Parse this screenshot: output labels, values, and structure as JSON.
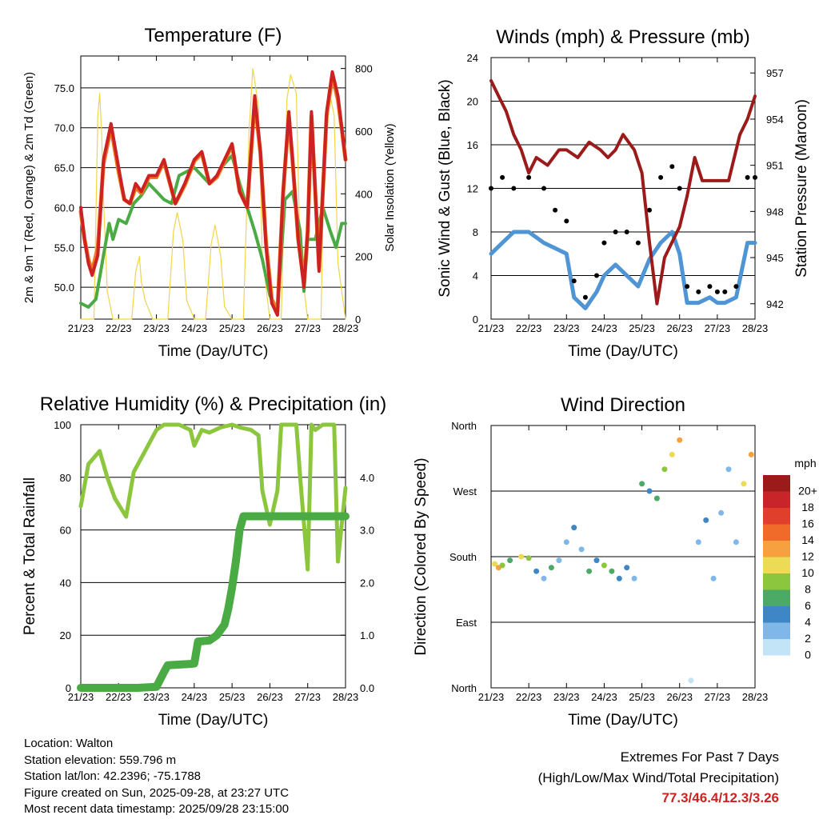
{
  "chart_data": [
    {
      "type": "line",
      "title": "Temperature (F)",
      "xlabel": "Time (Day/UTC)",
      "ylabel": "2m & 9m T (Red, Orange) & 2m Td (Green)",
      "y2label": "Solar Insolation (Yellow)",
      "x_ticks": [
        "21/23",
        "22/23",
        "23/23",
        "24/23",
        "25/23",
        "26/23",
        "27/23",
        "28/23"
      ],
      "y_ticks": [
        "50.0",
        "55.0",
        "60.0",
        "65.0",
        "70.0",
        "75.0"
      ],
      "y2_ticks": [
        "0",
        "200",
        "400",
        "600",
        "800"
      ],
      "ylim": [
        46,
        79
      ],
      "y2lim": [
        0,
        840
      ],
      "xlim": [
        0,
        7
      ],
      "series": [
        {
          "name": "2m Temperature",
          "color": "#cc2222",
          "x": [
            0,
            0.1,
            0.2,
            0.3,
            0.45,
            0.6,
            0.8,
            1.0,
            1.15,
            1.3,
            1.45,
            1.6,
            1.8,
            2.0,
            2.2,
            2.5,
            2.75,
            3.0,
            3.2,
            3.4,
            3.6,
            3.8,
            4.0,
            4.2,
            4.4,
            4.6,
            4.75,
            4.9,
            5.05,
            5.2,
            5.35,
            5.5,
            5.6,
            5.75,
            5.9,
            6.0,
            6.1,
            6.3,
            6.5,
            6.65,
            6.8,
            6.9,
            7.0
          ],
          "values": [
            60,
            56,
            53,
            51.5,
            54,
            66,
            70.5,
            65,
            61,
            60.5,
            63,
            62,
            64,
            64,
            66,
            60.5,
            63,
            66,
            67,
            63,
            64,
            66,
            68,
            62,
            60,
            74,
            67,
            55,
            48,
            46.5,
            62,
            72,
            66,
            56,
            50,
            57,
            72,
            52,
            72,
            77,
            74,
            70,
            66
          ]
        },
        {
          "name": "9m Temperature",
          "color": "#f07a20",
          "x": [
            0,
            0.1,
            0.2,
            0.3,
            0.45,
            0.6,
            0.8,
            1.0,
            1.15,
            1.3,
            1.45,
            1.6,
            1.8,
            2.0,
            2.2,
            2.5,
            2.75,
            3.0,
            3.2,
            3.4,
            3.6,
            3.8,
            4.0,
            4.2,
            4.4,
            4.6,
            4.75,
            4.9,
            5.05,
            5.2,
            5.35,
            5.5,
            5.6,
            5.75,
            5.9,
            6.0,
            6.1,
            6.3,
            6.5,
            6.65,
            6.8,
            6.9,
            7.0
          ],
          "values": [
            59.5,
            56,
            53.5,
            52,
            55,
            65.5,
            70,
            64.5,
            61,
            60.5,
            62.5,
            61.8,
            63.8,
            63.8,
            65.8,
            60.5,
            62.8,
            65.8,
            66.8,
            63,
            63.8,
            65.8,
            67.8,
            62,
            60,
            73.5,
            66.8,
            55.5,
            48.5,
            47,
            61.8,
            71.5,
            65.8,
            56,
            50.5,
            57,
            71.5,
            52.5,
            71.5,
            76.5,
            73.5,
            69.8,
            66
          ]
        },
        {
          "name": "2m Dewpoint",
          "color": "#4aaa44",
          "x": [
            0,
            0.2,
            0.4,
            0.6,
            0.75,
            0.85,
            1.0,
            1.2,
            1.4,
            1.6,
            1.8,
            2.0,
            2.2,
            2.4,
            2.6,
            2.8,
            3.0,
            3.2,
            3.4,
            3.6,
            3.8,
            4.0,
            4.2,
            4.4,
            4.6,
            4.8,
            5.0,
            5.2,
            5.4,
            5.6,
            5.8,
            5.9,
            6.0,
            6.2,
            6.4,
            6.6,
            6.75,
            6.9,
            7.0
          ],
          "values": [
            48,
            47.5,
            48.5,
            54,
            58,
            56,
            58.5,
            58,
            60.5,
            61.5,
            63,
            62,
            61,
            60.5,
            64,
            64.5,
            65,
            64,
            63,
            64,
            65.5,
            66.5,
            63,
            60,
            57,
            53.5,
            49,
            47,
            61,
            62,
            57,
            49.5,
            56,
            56,
            60,
            57,
            55,
            58,
            58
          ]
        },
        {
          "name": "Solar Insolation",
          "color": "#f2d44a",
          "axis": "y2",
          "x": [
            0,
            0.35,
            0.45,
            0.5,
            0.55,
            0.6,
            0.7,
            0.85,
            1,
            1.35,
            1.45,
            1.55,
            1.6,
            1.7,
            1.9,
            2,
            2.3,
            2.45,
            2.55,
            2.7,
            2.8,
            3,
            3.3,
            3.45,
            3.55,
            3.7,
            3.8,
            4,
            4.3,
            4.45,
            4.55,
            4.7,
            4.8,
            5,
            5.3,
            5.45,
            5.55,
            5.7,
            5.8,
            6,
            6.35,
            6.45,
            6.55,
            6.7,
            6.8,
            7
          ],
          "values": [
            0,
            0,
            650,
            720,
            600,
            380,
            90,
            0,
            0,
            0,
            150,
            200,
            120,
            60,
            0,
            0,
            0,
            280,
            340,
            250,
            60,
            0,
            0,
            240,
            300,
            200,
            40,
            0,
            0,
            600,
            800,
            680,
            200,
            0,
            0,
            700,
            780,
            720,
            200,
            0,
            0,
            600,
            740,
            650,
            180,
            0
          ]
        }
      ]
    },
    {
      "type": "line",
      "title": "Winds (mph) & Pressure (mb)",
      "xlabel": "Time (Day/UTC)",
      "ylabel": "Sonic Wind & Gust (Blue, Black)",
      "y2label": "Station Pressure (Maroon)",
      "x_ticks": [
        "21/23",
        "22/23",
        "23/23",
        "24/23",
        "25/23",
        "26/23",
        "27/23",
        "28/23"
      ],
      "y_ticks": [
        "0",
        "4",
        "8",
        "12",
        "16",
        "20",
        "24"
      ],
      "y2_ticks": [
        "942",
        "945",
        "948",
        "951",
        "954",
        "957"
      ],
      "ylim": [
        0,
        24
      ],
      "y2lim": [
        941,
        958
      ],
      "xlim": [
        0,
        7
      ],
      "series": [
        {
          "name": "Sonic Wind",
          "color": "#4f94d4",
          "x": [
            0,
            0.3,
            0.6,
            1.0,
            1.4,
            1.7,
            2.0,
            2.2,
            2.5,
            2.8,
            3.0,
            3.3,
            3.6,
            3.9,
            4.2,
            4.5,
            4.8,
            5.0,
            5.2,
            5.5,
            5.8,
            6.0,
            6.2,
            6.5,
            6.8,
            7.0
          ],
          "values": [
            6,
            7,
            8,
            8,
            7,
            6.5,
            6,
            2,
            1,
            2.5,
            4,
            5,
            4,
            3,
            5.5,
            7,
            8,
            6,
            1.5,
            1.5,
            2,
            1.5,
            1.5,
            2,
            7,
            7
          ]
        },
        {
          "name": "Gust",
          "color": "#000000",
          "x": [
            0,
            0.3,
            0.6,
            1.0,
            1.4,
            1.7,
            2.0,
            2.2,
            2.5,
            2.8,
            3.0,
            3.3,
            3.6,
            3.9,
            4.2,
            4.5,
            4.8,
            5.0,
            5.2,
            5.5,
            5.8,
            6.0,
            6.2,
            6.5,
            6.8,
            7.0
          ],
          "values": [
            12,
            13,
            12,
            13,
            12,
            10,
            9,
            3.5,
            2,
            4,
            7,
            8,
            8,
            7,
            10,
            13,
            14,
            12,
            3,
            2.5,
            3,
            2.5,
            2.5,
            3,
            13,
            13
          ]
        },
        {
          "name": "Station Pressure",
          "color": "#9b1b1b",
          "axis": "y2",
          "x": [
            0,
            0.2,
            0.4,
            0.6,
            0.8,
            1.0,
            1.2,
            1.5,
            1.8,
            2.0,
            2.3,
            2.6,
            2.9,
            3.1,
            3.3,
            3.5,
            3.8,
            4.0,
            4.2,
            4.4,
            4.6,
            4.8,
            5.0,
            5.2,
            5.4,
            5.6,
            5.8,
            6.0,
            6.3,
            6.6,
            6.8,
            7.0
          ],
          "values": [
            956.5,
            955.5,
            954.5,
            953,
            952,
            950.5,
            951.5,
            951,
            952,
            952,
            951.5,
            952.5,
            952,
            951.5,
            952,
            953,
            952,
            950.5,
            946,
            942,
            945,
            946,
            947,
            949,
            951.5,
            950,
            950,
            950,
            950,
            953,
            954,
            955.5
          ]
        }
      ]
    },
    {
      "type": "line",
      "title": "Relative Humidity (%) & Precipitation (in)",
      "xlabel": "Time (Day/UTC)",
      "ylabel": "Percent & Total Rainfall",
      "x_ticks": [
        "21/23",
        "22/23",
        "23/23",
        "24/23",
        "25/23",
        "26/23",
        "27/23",
        "28/23"
      ],
      "y_ticks": [
        "0",
        "20",
        "40",
        "60",
        "80",
        "100"
      ],
      "y2_ticks": [
        "0.0",
        "1.0",
        "2.0",
        "3.0",
        "4.0"
      ],
      "ylim": [
        0,
        100
      ],
      "y2lim": [
        0,
        5
      ],
      "xlim": [
        0,
        7
      ],
      "series": [
        {
          "name": "Relative Humidity",
          "color": "#8cc63f",
          "x": [
            0,
            0.2,
            0.5,
            0.7,
            0.9,
            1.2,
            1.4,
            1.7,
            2.0,
            2.2,
            2.6,
            2.9,
            3.0,
            3.2,
            3.4,
            3.7,
            4.0,
            4.2,
            4.5,
            4.7,
            4.8,
            5.0,
            5.2,
            5.3,
            5.5,
            5.7,
            5.8,
            6.0,
            6.1,
            6.2,
            6.4,
            6.7,
            6.8,
            7.0
          ],
          "values": [
            69,
            85,
            90,
            80,
            72,
            65,
            82,
            90,
            98,
            100,
            100,
            98,
            92,
            98,
            97,
            99,
            100,
            99,
            98,
            96,
            75,
            62,
            75,
            100,
            100,
            100,
            80,
            45,
            100,
            98,
            100,
            100,
            48,
            76
          ]
        },
        {
          "name": "Total Rainfall",
          "color": "#4aaa44",
          "axis": "y2",
          "x": [
            0,
            1.5,
            2.0,
            2.2,
            2.3,
            2.8,
            3.0,
            3.1,
            3.4,
            3.6,
            3.8,
            3.9,
            4.0,
            4.1,
            4.2,
            4.3,
            7.0
          ],
          "values": [
            0,
            0,
            0.02,
            0.3,
            0.43,
            0.45,
            0.46,
            0.88,
            0.9,
            1.0,
            1.2,
            1.5,
            1.9,
            2.4,
            3.0,
            3.26,
            3.26
          ]
        }
      ]
    },
    {
      "type": "scatter",
      "title": "Wind Direction",
      "xlabel": "Time (Day/UTC)",
      "ylabel": "Direction (Colored By Speed)",
      "x_ticks": [
        "21/23",
        "22/23",
        "23/23",
        "24/23",
        "25/23",
        "26/23",
        "27/23",
        "28/23"
      ],
      "y_ticks": [
        "North",
        "East",
        "South",
        "West",
        "North"
      ],
      "ylim": [
        0,
        360
      ],
      "xlim": [
        0,
        7
      ],
      "legend": {
        "title": "mph",
        "labels": [
          "20+",
          "18",
          "16",
          "14",
          "12",
          "10",
          "8",
          "6",
          "4",
          "2",
          "0"
        ],
        "colors": [
          "#9b1b1b",
          "#c8252a",
          "#e0402b",
          "#f06a2a",
          "#f6a040",
          "#ebdb55",
          "#8cc63f",
          "#4aaa66",
          "#3f86c6",
          "#7fb8e8",
          "#c2e4f6"
        ]
      },
      "series": [
        {
          "name": "Direction",
          "x": [
            0.1,
            0.2,
            0.3,
            0.5,
            0.8,
            1.0,
            1.2,
            1.4,
            1.6,
            1.8,
            2.0,
            2.2,
            2.4,
            2.6,
            2.8,
            3.0,
            3.2,
            3.4,
            3.6,
            3.8,
            4.0,
            4.2,
            4.4,
            4.6,
            4.8,
            5.0,
            5.3,
            5.5,
            5.7,
            5.9,
            6.1,
            6.3,
            6.5,
            6.7,
            6.9
          ],
          "values": [
            170,
            165,
            168,
            175,
            180,
            178,
            160,
            150,
            165,
            175,
            200,
            220,
            190,
            160,
            175,
            168,
            160,
            150,
            165,
            150,
            280,
            270,
            260,
            300,
            320,
            340,
            10,
            200,
            230,
            150,
            240,
            300,
            200,
            280,
            320
          ],
          "speeds": [
            10,
            12,
            8,
            6,
            10,
            8,
            4,
            2,
            6,
            2,
            2,
            4,
            2,
            6,
            4,
            8,
            6,
            4,
            4,
            2,
            6,
            4,
            6,
            8,
            10,
            12,
            0,
            2,
            4,
            2,
            2,
            2,
            2,
            10,
            12
          ]
        }
      ]
    }
  ],
  "footer": {
    "location": "Location: Walton",
    "elevation": "Station elevation: 559.796 m",
    "latlon": "Station lat/lon: 42.2396; -75.1788",
    "created": "Figure created on Sun, 2025-09-28, at 23:27 UTC",
    "timestamp": "Most recent data timestamp: 2025/09/28 23:15:00"
  },
  "extremes": {
    "heading": "Extremes For Past 7 Days",
    "subheading": "(High/Low/Max Wind/Total Precipitation)",
    "values": "77.3/46.4/12.3/3.26"
  }
}
